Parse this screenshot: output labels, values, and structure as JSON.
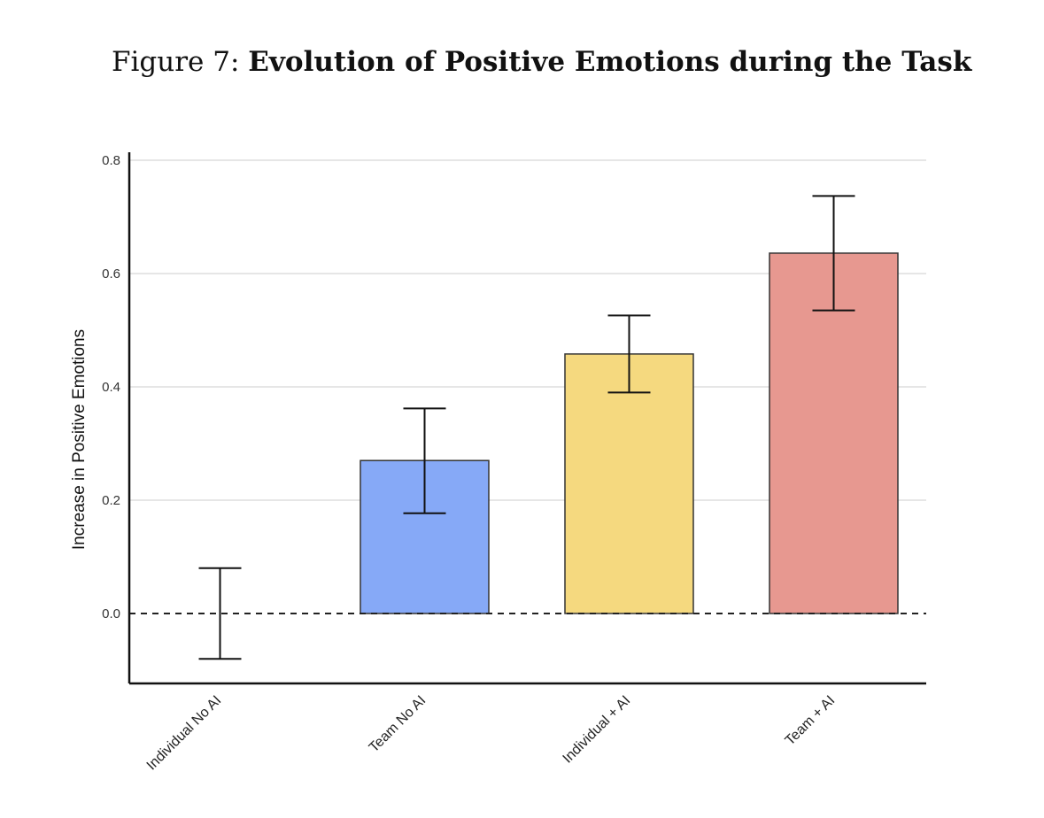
{
  "figure": {
    "label": "Figure 7:",
    "title": "Evolution of Positive Emotions during the Task"
  },
  "chart_data": {
    "type": "bar",
    "title": "Evolution of Positive Emotions during the Task",
    "xlabel": "",
    "ylabel": "Increase in Positive Emotions",
    "categories": [
      "Individual No AI",
      "Team No AI",
      "Individual + AI",
      "Team + AI"
    ],
    "values": [
      0.0,
      0.27,
      0.458,
      0.636
    ],
    "error_bars": [
      {
        "low": -0.08,
        "high": 0.08
      },
      {
        "low": 0.177,
        "high": 0.362
      },
      {
        "low": 0.39,
        "high": 0.526
      },
      {
        "low": 0.535,
        "high": 0.737
      }
    ],
    "colors": [
      "#ffffff",
      "#86a9f7",
      "#f5d97f",
      "#e79890"
    ],
    "ylim": [
      -0.125,
      0.8
    ],
    "yticks": [
      "0.0",
      "0.2",
      "0.4",
      "0.6",
      "0.8"
    ],
    "ytick_values": [
      0.0,
      0.2,
      0.4,
      0.6,
      0.8
    ],
    "reference_line": {
      "y": 0.0,
      "style": "dashed"
    },
    "grid": true,
    "legend": "none"
  }
}
